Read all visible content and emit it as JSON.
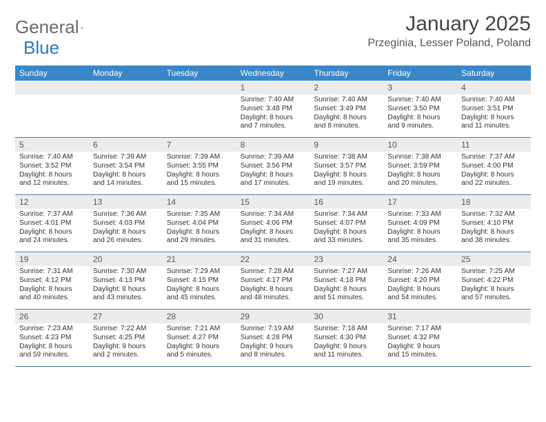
{
  "brand": {
    "name1": "General",
    "name2": "Blue"
  },
  "title": "January 2025",
  "location": "Przeginia, Lesser Poland, Poland",
  "colors": {
    "header_bg": "#3a87c8",
    "header_text": "#ffffff",
    "daynum_bg": "#ececec",
    "row_divider": "#3a6fa8",
    "brand_gray": "#6a6a6a",
    "brand_blue": "#2a7ac0"
  },
  "dow": [
    "Sunday",
    "Monday",
    "Tuesday",
    "Wednesday",
    "Thursday",
    "Friday",
    "Saturday"
  ],
  "weeks": [
    [
      null,
      null,
      null,
      {
        "n": "1",
        "sr": "Sunrise: 7:40 AM",
        "ss": "Sunset: 3:48 PM",
        "dl": "Daylight: 8 hours and 7 minutes."
      },
      {
        "n": "2",
        "sr": "Sunrise: 7:40 AM",
        "ss": "Sunset: 3:49 PM",
        "dl": "Daylight: 8 hours and 8 minutes."
      },
      {
        "n": "3",
        "sr": "Sunrise: 7:40 AM",
        "ss": "Sunset: 3:50 PM",
        "dl": "Daylight: 8 hours and 9 minutes."
      },
      {
        "n": "4",
        "sr": "Sunrise: 7:40 AM",
        "ss": "Sunset: 3:51 PM",
        "dl": "Daylight: 8 hours and 11 minutes."
      }
    ],
    [
      {
        "n": "5",
        "sr": "Sunrise: 7:40 AM",
        "ss": "Sunset: 3:52 PM",
        "dl": "Daylight: 8 hours and 12 minutes."
      },
      {
        "n": "6",
        "sr": "Sunrise: 7:39 AM",
        "ss": "Sunset: 3:54 PM",
        "dl": "Daylight: 8 hours and 14 minutes."
      },
      {
        "n": "7",
        "sr": "Sunrise: 7:39 AM",
        "ss": "Sunset: 3:55 PM",
        "dl": "Daylight: 8 hours and 15 minutes."
      },
      {
        "n": "8",
        "sr": "Sunrise: 7:39 AM",
        "ss": "Sunset: 3:56 PM",
        "dl": "Daylight: 8 hours and 17 minutes."
      },
      {
        "n": "9",
        "sr": "Sunrise: 7:38 AM",
        "ss": "Sunset: 3:57 PM",
        "dl": "Daylight: 8 hours and 19 minutes."
      },
      {
        "n": "10",
        "sr": "Sunrise: 7:38 AM",
        "ss": "Sunset: 3:59 PM",
        "dl": "Daylight: 8 hours and 20 minutes."
      },
      {
        "n": "11",
        "sr": "Sunrise: 7:37 AM",
        "ss": "Sunset: 4:00 PM",
        "dl": "Daylight: 8 hours and 22 minutes."
      }
    ],
    [
      {
        "n": "12",
        "sr": "Sunrise: 7:37 AM",
        "ss": "Sunset: 4:01 PM",
        "dl": "Daylight: 8 hours and 24 minutes."
      },
      {
        "n": "13",
        "sr": "Sunrise: 7:36 AM",
        "ss": "Sunset: 4:03 PM",
        "dl": "Daylight: 8 hours and 26 minutes."
      },
      {
        "n": "14",
        "sr": "Sunrise: 7:35 AM",
        "ss": "Sunset: 4:04 PM",
        "dl": "Daylight: 8 hours and 29 minutes."
      },
      {
        "n": "15",
        "sr": "Sunrise: 7:34 AM",
        "ss": "Sunset: 4:06 PM",
        "dl": "Daylight: 8 hours and 31 minutes."
      },
      {
        "n": "16",
        "sr": "Sunrise: 7:34 AM",
        "ss": "Sunset: 4:07 PM",
        "dl": "Daylight: 8 hours and 33 minutes."
      },
      {
        "n": "17",
        "sr": "Sunrise: 7:33 AM",
        "ss": "Sunset: 4:09 PM",
        "dl": "Daylight: 8 hours and 35 minutes."
      },
      {
        "n": "18",
        "sr": "Sunrise: 7:32 AM",
        "ss": "Sunset: 4:10 PM",
        "dl": "Daylight: 8 hours and 38 minutes."
      }
    ],
    [
      {
        "n": "19",
        "sr": "Sunrise: 7:31 AM",
        "ss": "Sunset: 4:12 PM",
        "dl": "Daylight: 8 hours and 40 minutes."
      },
      {
        "n": "20",
        "sr": "Sunrise: 7:30 AM",
        "ss": "Sunset: 4:13 PM",
        "dl": "Daylight: 8 hours and 43 minutes."
      },
      {
        "n": "21",
        "sr": "Sunrise: 7:29 AM",
        "ss": "Sunset: 4:15 PM",
        "dl": "Daylight: 8 hours and 45 minutes."
      },
      {
        "n": "22",
        "sr": "Sunrise: 7:28 AM",
        "ss": "Sunset: 4:17 PM",
        "dl": "Daylight: 8 hours and 48 minutes."
      },
      {
        "n": "23",
        "sr": "Sunrise: 7:27 AM",
        "ss": "Sunset: 4:18 PM",
        "dl": "Daylight: 8 hours and 51 minutes."
      },
      {
        "n": "24",
        "sr": "Sunrise: 7:26 AM",
        "ss": "Sunset: 4:20 PM",
        "dl": "Daylight: 8 hours and 54 minutes."
      },
      {
        "n": "25",
        "sr": "Sunrise: 7:25 AM",
        "ss": "Sunset: 4:22 PM",
        "dl": "Daylight: 8 hours and 57 minutes."
      }
    ],
    [
      {
        "n": "26",
        "sr": "Sunrise: 7:23 AM",
        "ss": "Sunset: 4:23 PM",
        "dl": "Daylight: 8 hours and 59 minutes."
      },
      {
        "n": "27",
        "sr": "Sunrise: 7:22 AM",
        "ss": "Sunset: 4:25 PM",
        "dl": "Daylight: 9 hours and 2 minutes."
      },
      {
        "n": "28",
        "sr": "Sunrise: 7:21 AM",
        "ss": "Sunset: 4:27 PM",
        "dl": "Daylight: 9 hours and 5 minutes."
      },
      {
        "n": "29",
        "sr": "Sunrise: 7:19 AM",
        "ss": "Sunset: 4:28 PM",
        "dl": "Daylight: 9 hours and 8 minutes."
      },
      {
        "n": "30",
        "sr": "Sunrise: 7:18 AM",
        "ss": "Sunset: 4:30 PM",
        "dl": "Daylight: 9 hours and 11 minutes."
      },
      {
        "n": "31",
        "sr": "Sunrise: 7:17 AM",
        "ss": "Sunset: 4:32 PM",
        "dl": "Daylight: 9 hours and 15 minutes."
      },
      null
    ]
  ]
}
